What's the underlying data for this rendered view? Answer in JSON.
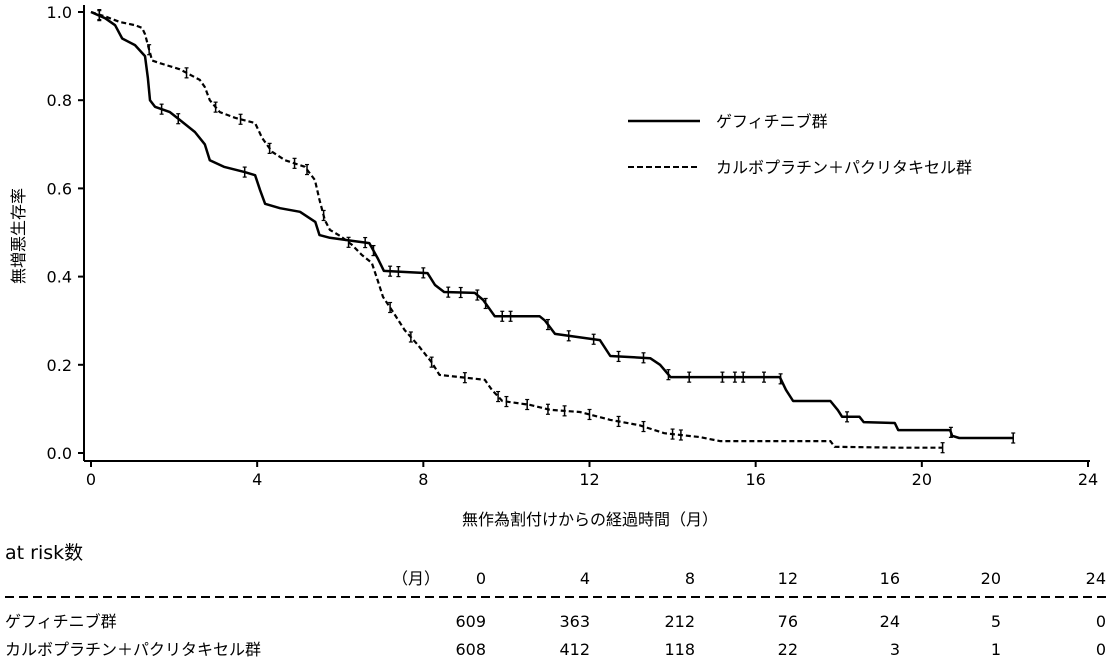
{
  "chart_data": {
    "type": "line",
    "subtype": "kaplan-meier",
    "xlabel": "無作為割付けからの経過時間（月）",
    "ylabel": "無増悪生存率",
    "xlim": [
      0,
      24
    ],
    "ylim": [
      0,
      1.0
    ],
    "xticks": [
      "0",
      "4",
      "8",
      "12",
      "16",
      "20",
      "24"
    ],
    "yticks": [
      "0.0",
      "0.2",
      "0.4",
      "0.6",
      "0.8",
      "1.0"
    ],
    "legend_position": "upper-right",
    "series": [
      {
        "name": "ゲフィチニブ群",
        "style": "solid",
        "points": [
          [
            0,
            1.0
          ],
          [
            0.34,
            0.986
          ],
          [
            0.58,
            0.97
          ],
          [
            0.75,
            0.94
          ],
          [
            1.06,
            0.925
          ],
          [
            1.3,
            0.9
          ],
          [
            1.37,
            0.85
          ],
          [
            1.42,
            0.8
          ],
          [
            1.54,
            0.785
          ],
          [
            1.9,
            0.773
          ],
          [
            2.14,
            0.755
          ],
          [
            2.5,
            0.728
          ],
          [
            2.74,
            0.7
          ],
          [
            2.86,
            0.664
          ],
          [
            3.2,
            0.649
          ],
          [
            3.7,
            0.637
          ],
          [
            3.95,
            0.63
          ],
          [
            4.07,
            0.596
          ],
          [
            4.19,
            0.565
          ],
          [
            4.55,
            0.555
          ],
          [
            5.03,
            0.547
          ],
          [
            5.4,
            0.524
          ],
          [
            5.5,
            0.494
          ],
          [
            5.75,
            0.488
          ],
          [
            6.36,
            0.48
          ],
          [
            6.7,
            0.476
          ],
          [
            6.9,
            0.442
          ],
          [
            7.05,
            0.413
          ],
          [
            7.68,
            0.41
          ],
          [
            8.1,
            0.408
          ],
          [
            8.28,
            0.381
          ],
          [
            8.5,
            0.365
          ],
          [
            9.24,
            0.363
          ],
          [
            9.44,
            0.347
          ],
          [
            9.72,
            0.31
          ],
          [
            10.8,
            0.31
          ],
          [
            10.93,
            0.3
          ],
          [
            11.17,
            0.27
          ],
          [
            12.25,
            0.256
          ],
          [
            12.5,
            0.22
          ],
          [
            13.46,
            0.215
          ],
          [
            13.7,
            0.2
          ],
          [
            13.95,
            0.172
          ],
          [
            16.58,
            0.172
          ],
          [
            16.73,
            0.143
          ],
          [
            16.9,
            0.118
          ],
          [
            17.8,
            0.118
          ],
          [
            17.98,
            0.097
          ],
          [
            18.08,
            0.082
          ],
          [
            18.5,
            0.082
          ],
          [
            18.6,
            0.07
          ],
          [
            19.35,
            0.068
          ],
          [
            19.43,
            0.052
          ],
          [
            20.68,
            0.052
          ],
          [
            20.73,
            0.039
          ],
          [
            20.9,
            0.034
          ],
          [
            22.2,
            0.034
          ]
        ],
        "censored": [
          0.2,
          1.7,
          2.1,
          3.7,
          6.6,
          6.8,
          7.2,
          7.4,
          8.0,
          8.6,
          8.9,
          9.3,
          9.5,
          9.9,
          10.1,
          11.0,
          11.5,
          12.1,
          12.7,
          13.3,
          13.9,
          14.4,
          15.2,
          15.5,
          15.7,
          16.2,
          16.6,
          18.2,
          20.7,
          22.2
        ]
      },
      {
        "name": "カルボプラチン＋パクリタキセル群",
        "style": "dashed",
        "points": [
          [
            0,
            1.0
          ],
          [
            0.34,
            0.99
          ],
          [
            0.7,
            0.977
          ],
          [
            1.06,
            0.97
          ],
          [
            1.23,
            0.964
          ],
          [
            1.3,
            0.95
          ],
          [
            1.37,
            0.925
          ],
          [
            1.47,
            0.89
          ],
          [
            1.66,
            0.884
          ],
          [
            2.14,
            0.87
          ],
          [
            2.62,
            0.846
          ],
          [
            2.74,
            0.83
          ],
          [
            2.86,
            0.8
          ],
          [
            3.1,
            0.773
          ],
          [
            3.47,
            0.76
          ],
          [
            3.95,
            0.748
          ],
          [
            4.12,
            0.714
          ],
          [
            4.36,
            0.683
          ],
          [
            4.67,
            0.664
          ],
          [
            5.15,
            0.649
          ],
          [
            5.39,
            0.619
          ],
          [
            5.5,
            0.574
          ],
          [
            5.63,
            0.528
          ],
          [
            5.75,
            0.506
          ],
          [
            6.0,
            0.492
          ],
          [
            6.28,
            0.472
          ],
          [
            6.52,
            0.449
          ],
          [
            6.76,
            0.431
          ],
          [
            6.9,
            0.392
          ],
          [
            7.03,
            0.354
          ],
          [
            7.27,
            0.32
          ],
          [
            7.55,
            0.279
          ],
          [
            7.87,
            0.245
          ],
          [
            8.2,
            0.206
          ],
          [
            8.39,
            0.177
          ],
          [
            8.88,
            0.172
          ],
          [
            9.48,
            0.166
          ],
          [
            9.65,
            0.143
          ],
          [
            9.9,
            0.118
          ],
          [
            10.57,
            0.109
          ],
          [
            11.05,
            0.098
          ],
          [
            11.77,
            0.093
          ],
          [
            12.5,
            0.075
          ],
          [
            13.2,
            0.063
          ],
          [
            13.8,
            0.045
          ],
          [
            14.66,
            0.036
          ],
          [
            15.14,
            0.027
          ],
          [
            17.8,
            0.027
          ],
          [
            17.9,
            0.014
          ],
          [
            19.5,
            0.012
          ],
          [
            20.5,
            0.012
          ]
        ],
        "censored": [
          0.2,
          1.4,
          2.3,
          3.0,
          3.6,
          4.3,
          4.9,
          5.2,
          5.6,
          6.2,
          7.2,
          7.7,
          8.2,
          9.0,
          9.8,
          10.0,
          10.5,
          11.0,
          11.4,
          12.0,
          12.7,
          13.3,
          14.0,
          14.2,
          20.5
        ]
      }
    ]
  },
  "risk_table": {
    "title": "at risk数",
    "unit_label": "（月）",
    "times": [
      "0",
      "4",
      "8",
      "12",
      "16",
      "20",
      "24"
    ],
    "rows": [
      {
        "label": "ゲフィチニブ群",
        "values": [
          "609",
          "363",
          "212",
          "76",
          "24",
          "5",
          "0"
        ]
      },
      {
        "label": "カルボプラチン＋パクリタキセル群",
        "values": [
          "608",
          "412",
          "118",
          "22",
          "3",
          "1",
          "0"
        ]
      }
    ]
  }
}
